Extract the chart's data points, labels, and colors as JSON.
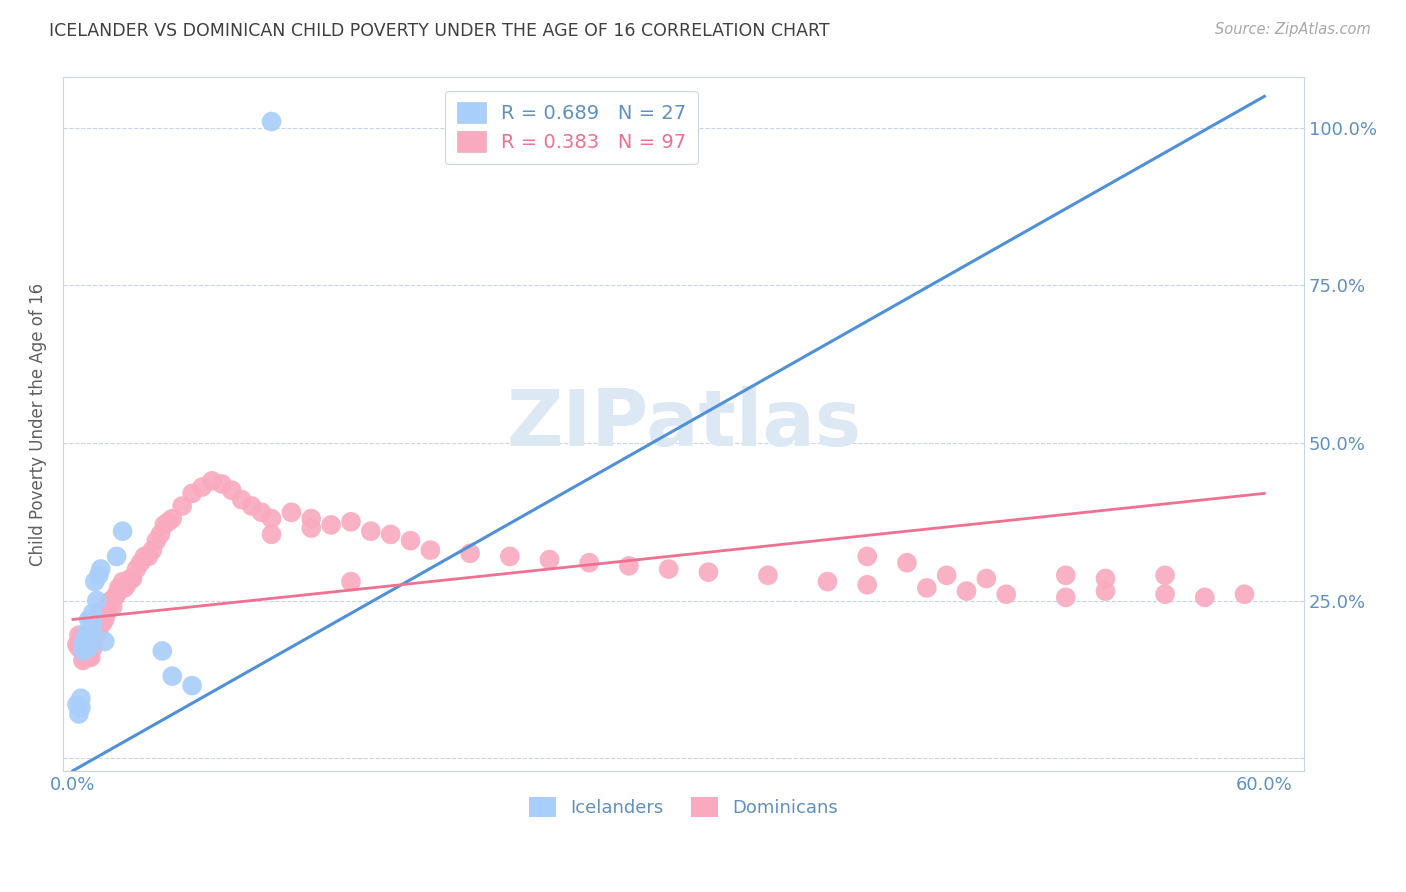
{
  "title": "ICELANDER VS DOMINICAN CHILD POVERTY UNDER THE AGE OF 16 CORRELATION CHART",
  "source": "Source: ZipAtlas.com",
  "ylabel": "Child Poverty Under the Age of 16",
  "xlim": [
    -0.005,
    0.62
  ],
  "ylim": [
    -0.02,
    1.08
  ],
  "xticks": [
    0.0,
    0.6
  ],
  "xticklabels": [
    "0.0%",
    "60.0%"
  ],
  "yticks": [
    0.0,
    0.25,
    0.5,
    0.75,
    1.0
  ],
  "right_yticklabels": [
    "",
    "25.0%",
    "50.0%",
    "75.0%",
    "100.0%"
  ],
  "iceland_R": 0.689,
  "iceland_N": 27,
  "dominican_R": 0.383,
  "dominican_N": 97,
  "iceland_color": "#A8CEFA",
  "dominican_color": "#F9AABF",
  "iceland_line_color": "#5090D8",
  "dominican_line_color": "#EF7090",
  "grid_color": "#C8D4E8",
  "axis_color": "#6090C0",
  "watermark_color": "#DDE8F5",
  "iceland_x": [
    0.002,
    0.003,
    0.004,
    0.004,
    0.005,
    0.005,
    0.006,
    0.006,
    0.007,
    0.007,
    0.008,
    0.008,
    0.009,
    0.009,
    0.01,
    0.01,
    0.011,
    0.012,
    0.013,
    0.014,
    0.016,
    0.022,
    0.025,
    0.045,
    0.05,
    0.06,
    0.1
  ],
  "iceland_y": [
    0.085,
    0.07,
    0.08,
    0.095,
    0.17,
    0.18,
    0.175,
    0.19,
    0.175,
    0.2,
    0.175,
    0.22,
    0.2,
    0.22,
    0.21,
    0.23,
    0.28,
    0.25,
    0.29,
    0.3,
    0.185,
    0.32,
    0.36,
    0.17,
    0.13,
    0.115,
    1.01
  ],
  "dominican_x": [
    0.002,
    0.003,
    0.003,
    0.004,
    0.004,
    0.005,
    0.005,
    0.006,
    0.006,
    0.007,
    0.007,
    0.008,
    0.008,
    0.009,
    0.009,
    0.01,
    0.01,
    0.011,
    0.011,
    0.012,
    0.012,
    0.013,
    0.013,
    0.014,
    0.015,
    0.015,
    0.016,
    0.017,
    0.018,
    0.019,
    0.02,
    0.021,
    0.022,
    0.023,
    0.024,
    0.025,
    0.026,
    0.027,
    0.028,
    0.029,
    0.03,
    0.032,
    0.034,
    0.036,
    0.038,
    0.04,
    0.042,
    0.044,
    0.046,
    0.048,
    0.05,
    0.055,
    0.06,
    0.065,
    0.07,
    0.075,
    0.08,
    0.085,
    0.09,
    0.095,
    0.1,
    0.11,
    0.12,
    0.13,
    0.14,
    0.15,
    0.16,
    0.17,
    0.18,
    0.2,
    0.22,
    0.24,
    0.26,
    0.28,
    0.3,
    0.32,
    0.35,
    0.38,
    0.4,
    0.43,
    0.45,
    0.47,
    0.5,
    0.52,
    0.55,
    0.57,
    0.59,
    0.4,
    0.42,
    0.44,
    0.46,
    0.1,
    0.12,
    0.14,
    0.5,
    0.52,
    0.55
  ],
  "dominican_y": [
    0.18,
    0.175,
    0.195,
    0.175,
    0.19,
    0.155,
    0.175,
    0.16,
    0.185,
    0.165,
    0.18,
    0.16,
    0.195,
    0.16,
    0.185,
    0.175,
    0.2,
    0.185,
    0.205,
    0.21,
    0.225,
    0.2,
    0.21,
    0.22,
    0.215,
    0.235,
    0.22,
    0.23,
    0.245,
    0.25,
    0.24,
    0.255,
    0.26,
    0.27,
    0.27,
    0.28,
    0.27,
    0.275,
    0.28,
    0.285,
    0.285,
    0.3,
    0.31,
    0.32,
    0.32,
    0.33,
    0.345,
    0.355,
    0.37,
    0.375,
    0.38,
    0.4,
    0.42,
    0.43,
    0.44,
    0.435,
    0.425,
    0.41,
    0.4,
    0.39,
    0.38,
    0.39,
    0.38,
    0.37,
    0.375,
    0.36,
    0.355,
    0.345,
    0.33,
    0.325,
    0.32,
    0.315,
    0.31,
    0.305,
    0.3,
    0.295,
    0.29,
    0.28,
    0.275,
    0.27,
    0.265,
    0.26,
    0.255,
    0.265,
    0.26,
    0.255,
    0.26,
    0.32,
    0.31,
    0.29,
    0.285,
    0.355,
    0.365,
    0.28,
    0.29,
    0.285,
    0.29
  ],
  "iceland_trend_x": [
    0.0,
    0.6
  ],
  "iceland_trend_y": [
    -0.02,
    1.05
  ],
  "dominican_trend_x": [
    0.0,
    0.6
  ],
  "dominican_trend_y": [
    0.22,
    0.42
  ]
}
